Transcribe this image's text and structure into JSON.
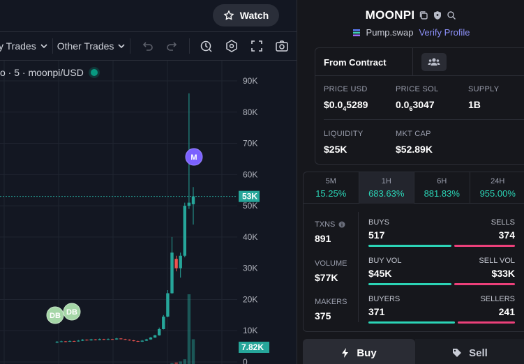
{
  "watch": {
    "label": "Watch"
  },
  "toolbar": {
    "my_trades": "y Trades",
    "other_trades": "Other Trades"
  },
  "symbol": {
    "text": "o · 5 · moonpi/USD"
  },
  "token": {
    "name": "MOONPI",
    "dex": "Pump.swap",
    "verify": "Verify Profile"
  },
  "contract": {
    "label": "From Contract"
  },
  "stats": {
    "price_usd": {
      "label": "PRICE USD",
      "prefix": "$0.0",
      "sub": "4",
      "rest": "5289"
    },
    "price_sol": {
      "label": "PRICE SOL",
      "prefix": "0.0",
      "sub": "6",
      "rest": "3047"
    },
    "supply": {
      "label": "SUPPLY",
      "value": "1B"
    },
    "liquidity": {
      "label": "LIQUIDITY",
      "value": "$25K"
    },
    "mkt_cap": {
      "label": "MKT CAP",
      "value": "$52.89K"
    }
  },
  "periods": [
    {
      "label": "5M",
      "value": "15.25%"
    },
    {
      "label": "1H",
      "value": "683.63%",
      "active": true
    },
    {
      "label": "6H",
      "value": "881.83%"
    },
    {
      "label": "24H",
      "value": "955.00%"
    }
  ],
  "txns": {
    "label": "TXNS",
    "value": "891"
  },
  "volume": {
    "label": "VOLUME",
    "value": "$77K"
  },
  "makers": {
    "label": "MAKERS",
    "value": "375"
  },
  "buys_sells": {
    "left_label": "BUYS",
    "right_label": "SELLS",
    "left": "517",
    "right": "374",
    "buy_fraction": 0.58
  },
  "vol_split": {
    "left_label": "BUY VOL",
    "right_label": "SELL VOL",
    "left": "$45K",
    "right": "$33K",
    "buy_fraction": 0.58
  },
  "buyers_sellers": {
    "left_label": "BUYERS",
    "right_label": "SELLERS",
    "left": "371",
    "right": "241",
    "buy_fraction": 0.6
  },
  "actions": {
    "buy": "Buy",
    "sell": "Sell"
  },
  "chart_data": {
    "type": "candlestick",
    "title": "",
    "y_ticks": [
      "90K",
      "80K",
      "70K",
      "60K",
      "50K",
      "40K",
      "30K",
      "20K",
      "10K",
      "0"
    ],
    "ylim": [
      0,
      90000
    ],
    "last_price_label": "53K",
    "volume_label": "7.82K",
    "markers": [
      "DB",
      "DB",
      "M"
    ],
    "candles": [
      {
        "o": 6200,
        "c": 6400,
        "h": 6700,
        "l": 6000
      },
      {
        "o": 6400,
        "c": 6600,
        "h": 6800,
        "l": 6300
      },
      {
        "o": 6600,
        "c": 6500,
        "h": 6700,
        "l": 6300
      },
      {
        "o": 6500,
        "c": 6700,
        "h": 6900,
        "l": 6400
      },
      {
        "o": 6700,
        "c": 6600,
        "h": 6800,
        "l": 6500
      },
      {
        "o": 6600,
        "c": 6800,
        "h": 7000,
        "l": 6500
      },
      {
        "o": 6800,
        "c": 7100,
        "h": 7300,
        "l": 6700
      },
      {
        "o": 7100,
        "c": 6900,
        "h": 7200,
        "l": 6800
      },
      {
        "o": 6900,
        "c": 7200,
        "h": 7400,
        "l": 6800
      },
      {
        "o": 7200,
        "c": 7000,
        "h": 7300,
        "l": 6900
      },
      {
        "o": 7000,
        "c": 7300,
        "h": 7500,
        "l": 6900
      },
      {
        "o": 7300,
        "c": 7100,
        "h": 7400,
        "l": 7000
      },
      {
        "o": 7100,
        "c": 7300,
        "h": 7500,
        "l": 7000
      },
      {
        "o": 7300,
        "c": 7200,
        "h": 7400,
        "l": 7100
      },
      {
        "o": 7200,
        "c": 7500,
        "h": 7700,
        "l": 7100
      },
      {
        "o": 7500,
        "c": 7300,
        "h": 7600,
        "l": 7200
      },
      {
        "o": 7300,
        "c": 7100,
        "h": 7400,
        "l": 7000
      },
      {
        "o": 7100,
        "c": 6900,
        "h": 7200,
        "l": 6800
      },
      {
        "o": 6900,
        "c": 6700,
        "h": 7000,
        "l": 6600
      },
      {
        "o": 6700,
        "c": 6500,
        "h": 6800,
        "l": 6400
      },
      {
        "o": 6500,
        "c": 6800,
        "h": 7000,
        "l": 6400
      },
      {
        "o": 6800,
        "c": 7200,
        "h": 7400,
        "l": 6700
      },
      {
        "o": 7200,
        "c": 7800,
        "h": 8000,
        "l": 7100
      },
      {
        "o": 7800,
        "c": 8500,
        "h": 8700,
        "l": 7700
      },
      {
        "o": 8500,
        "c": 10500,
        "h": 11000,
        "l": 8400
      },
      {
        "o": 10500,
        "c": 14500,
        "h": 15000,
        "l": 10400
      },
      {
        "o": 14500,
        "c": 22000,
        "h": 23000,
        "l": 14300
      },
      {
        "o": 22000,
        "c": 35000,
        "h": 40000,
        "l": 21800
      },
      {
        "o": 33000,
        "c": 30000,
        "h": 34000,
        "l": 29000
      },
      {
        "o": 30000,
        "c": 34000,
        "h": 35000,
        "l": 27000
      },
      {
        "o": 34000,
        "c": 50000,
        "h": 51000,
        "l": 33500
      },
      {
        "o": 50000,
        "c": 51000,
        "h": 86000,
        "l": 49000
      },
      {
        "o": 50500,
        "c": 53000,
        "h": 56000,
        "l": 44000
      }
    ],
    "volumes": [
      0,
      0,
      0,
      0,
      0,
      0,
      0,
      0,
      0,
      0,
      0,
      0,
      0,
      0,
      0,
      0,
      0,
      0,
      0,
      0,
      0,
      0,
      0,
      0,
      0,
      0,
      0,
      300,
      500,
      800,
      1500,
      22000,
      7820
    ]
  }
}
